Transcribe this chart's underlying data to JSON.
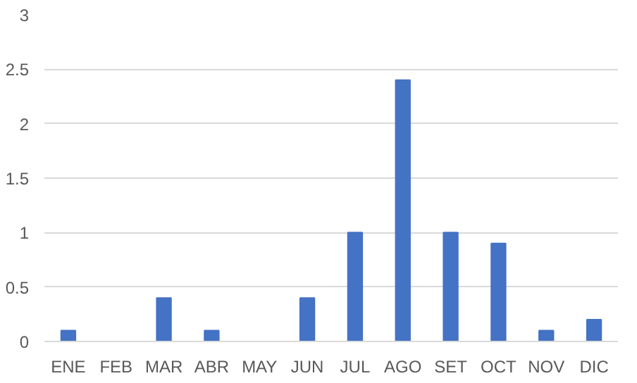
{
  "chart_data": {
    "type": "bar",
    "categories": [
      "ENE",
      "FEB",
      "MAR",
      "ABR",
      "MAY",
      "JUN",
      "JUL",
      "AGO",
      "SET",
      "OCT",
      "NOV",
      "DIC"
    ],
    "values": [
      0.1,
      0,
      0.4,
      0.1,
      0,
      0.4,
      1.0,
      2.4,
      1.0,
      0.9,
      0.1,
      0.2
    ],
    "color": "#4472c4",
    "ylim": [
      0,
      3
    ],
    "yticks": [
      0,
      0.5,
      1,
      1.5,
      2,
      2.5,
      3
    ],
    "grid": "y"
  }
}
